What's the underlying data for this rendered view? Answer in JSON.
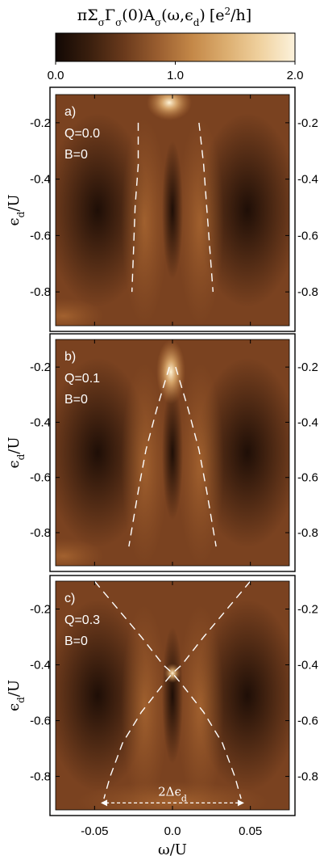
{
  "chart_data": {
    "type": "heatmap",
    "colorbar": {
      "title_prefix": "πΣ",
      "title_sub1": "σ",
      "title_gamma": "Γ",
      "title_sub2": "σ",
      "title_mid": "(0)A",
      "title_sub3": "σ",
      "title_args": "(ω,ϵ",
      "title_sub4": "d",
      "title_close": ")",
      "title_units": "[e",
      "title_sup": "2",
      "title_units_end": "/h]",
      "min": 0.0,
      "max": 2.0,
      "tick_values": [
        0.0,
        1.0,
        2.0
      ],
      "tick_labels": [
        "0.0",
        "1.0",
        "2.0"
      ],
      "stops": [
        "#120804",
        "#3a1f0e",
        "#6a3a1c",
        "#9a5e30",
        "#c48848",
        "#dcae70",
        "#f0d2a0",
        "#fcf2dc"
      ]
    },
    "x": {
      "label_main": "ω/U",
      "range": [
        -0.075,
        0.075
      ],
      "ticks": [
        -0.05,
        0.0,
        0.05
      ],
      "tick_labels": [
        "-0.05",
        "0.0",
        "0.05"
      ]
    },
    "y": {
      "label_main": "ϵ",
      "label_sub": "d",
      "label_end": "/U",
      "range": [
        -0.92,
        -0.1
      ],
      "ticks": [
        -0.2,
        -0.4,
        -0.6,
        -0.8
      ],
      "tick_labels": [
        "-0.2",
        "-0.4",
        "-0.6",
        "-0.8"
      ]
    },
    "panels": [
      {
        "label": "a)",
        "q_text": "Q=0.0",
        "b_text": "B=0",
        "Q": 0.0,
        "B": 0,
        "dashed_lines": [
          [
            [
              -0.022,
              -0.2
            ],
            [
              -0.022,
              -0.35
            ],
            [
              -0.024,
              -0.5
            ],
            [
              -0.025,
              -0.65
            ],
            [
              -0.026,
              -0.8
            ]
          ],
          [
            [
              0.017,
              -0.2
            ],
            [
              0.02,
              -0.35
            ],
            [
              0.022,
              -0.5
            ],
            [
              0.024,
              -0.65
            ],
            [
              0.026,
              -0.8
            ]
          ]
        ]
      },
      {
        "label": "b)",
        "q_text": "Q=0.1",
        "b_text": "B=0",
        "Q": 0.1,
        "B": 0,
        "dashed_lines": [
          [
            [
              -0.002,
              -0.2
            ],
            [
              -0.01,
              -0.35
            ],
            [
              -0.017,
              -0.5
            ],
            [
              -0.022,
              -0.65
            ],
            [
              -0.028,
              -0.85
            ]
          ],
          [
            [
              0.002,
              -0.2
            ],
            [
              0.01,
              -0.35
            ],
            [
              0.017,
              -0.5
            ],
            [
              0.022,
              -0.65
            ],
            [
              0.028,
              -0.85
            ]
          ]
        ]
      },
      {
        "label": "c)",
        "q_text": "Q=0.3",
        "b_text": "B=0",
        "Q": 0.3,
        "B": 0,
        "dashed_lines": [
          [
            [
              -0.05,
              -0.1
            ],
            [
              -0.035,
              -0.2
            ],
            [
              -0.02,
              -0.3
            ],
            [
              -0.006,
              -0.4
            ],
            [
              0.0,
              -0.43
            ],
            [
              0.006,
              -0.47
            ],
            [
              0.02,
              -0.57
            ],
            [
              0.032,
              -0.68
            ],
            [
              0.04,
              -0.8
            ],
            [
              0.044,
              -0.88
            ]
          ],
          [
            [
              0.05,
              -0.1
            ],
            [
              0.035,
              -0.2
            ],
            [
              0.02,
              -0.3
            ],
            [
              0.006,
              -0.4
            ],
            [
              0.0,
              -0.43
            ],
            [
              -0.006,
              -0.47
            ],
            [
              -0.02,
              -0.57
            ],
            [
              -0.032,
              -0.68
            ],
            [
              -0.04,
              -0.8
            ],
            [
              -0.044,
              -0.88
            ]
          ]
        ],
        "delta_arrow": {
          "x_from": -0.046,
          "x_to": 0.046,
          "y": -0.895,
          "label_prefix": "2Δϵ",
          "label_sub": "d"
        }
      }
    ]
  }
}
